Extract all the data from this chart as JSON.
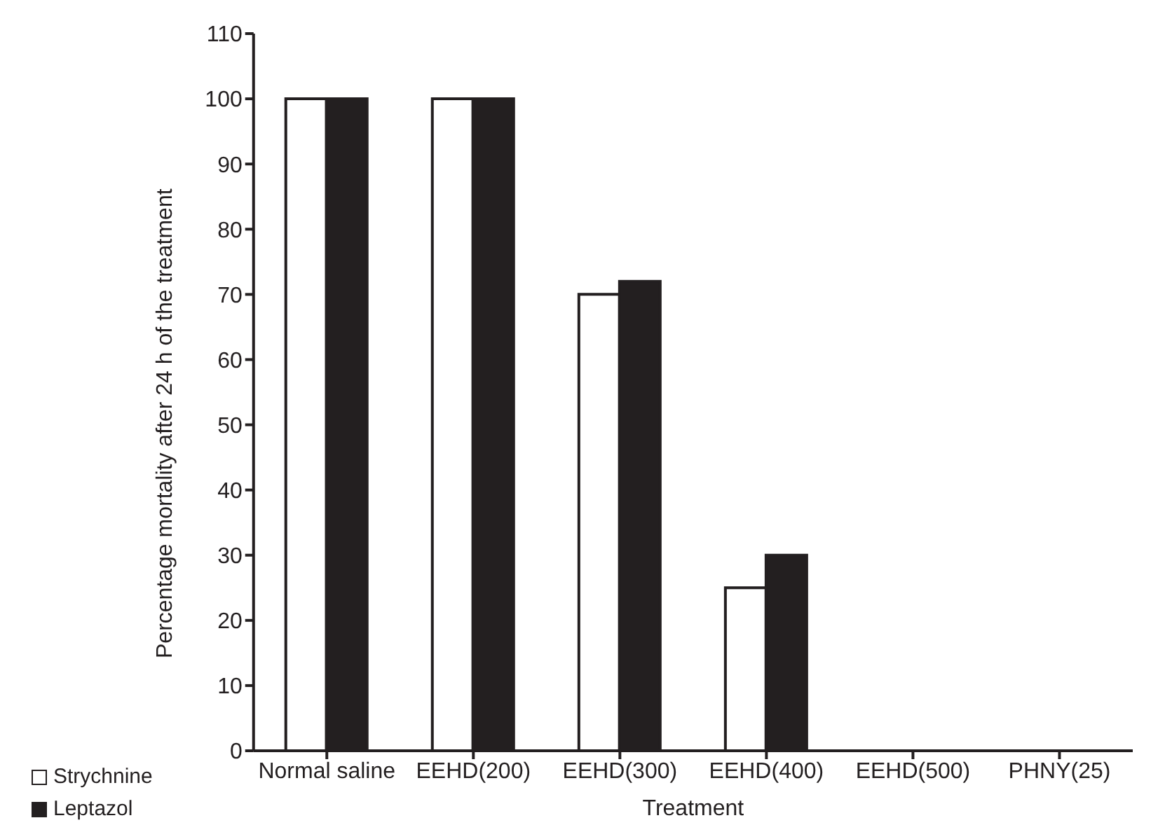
{
  "chart_data": {
    "type": "bar",
    "xlabel": "Treatment",
    "ylabel": "Percentage mortality after 24 h of the treatment",
    "categories": [
      "Normal saline",
      "EEHD(200)",
      "EEHD(300)",
      "EEHD(400)",
      "EEHD(500)",
      "PHNY(25)"
    ],
    "series": [
      {
        "name": "Strychnine",
        "color": "#ffffff",
        "values": [
          100,
          100,
          70,
          25,
          0,
          0
        ]
      },
      {
        "name": "Leptazol",
        "color": "#231f20",
        "values": [
          100,
          100,
          72,
          30,
          0,
          0
        ]
      }
    ],
    "ylim": [
      0,
      110
    ],
    "yticks": [
      0,
      10,
      20,
      30,
      40,
      50,
      60,
      70,
      80,
      90,
      100,
      110
    ],
    "grid": false,
    "legend": "bottom left"
  }
}
